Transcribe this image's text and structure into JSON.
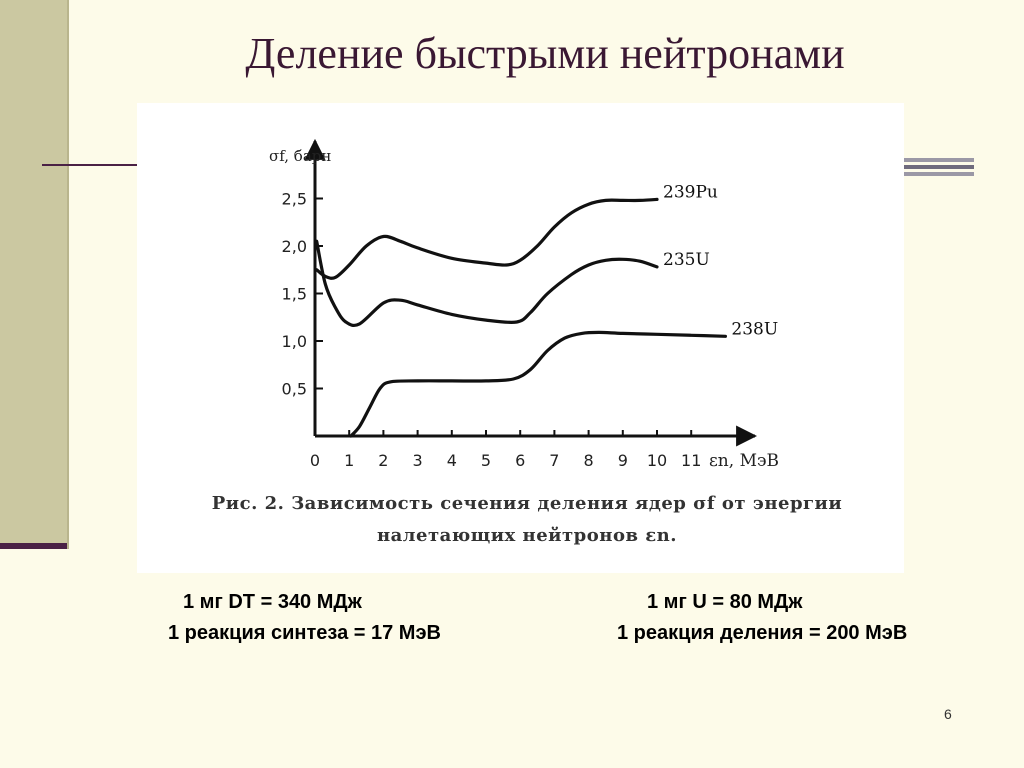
{
  "slide": {
    "title": "Деление быстрыми нейтронами",
    "page_number": "6",
    "stats": {
      "dt_energy": "1 мг DT = 340 МДж",
      "u_energy": "1 мг U = 80 МДж",
      "fusion_reaction": "1 реакция синтеза = 17 МэВ",
      "fission_reaction": "1 реакция деления = 200 МэВ"
    }
  },
  "chart_data": {
    "type": "line",
    "ylabel": "σf, барн",
    "xlabel": "εn, МэВ",
    "caption_prefix": "Рис. 2.",
    "caption_text": "Зависимость сечения деления ядер σf от энергии налетающих нейтронов εn.",
    "xlim": [
      0,
      12.5
    ],
    "ylim": [
      0,
      2.9
    ],
    "x_ticks": [
      "0",
      "1",
      "2",
      "3",
      "4",
      "5",
      "6",
      "7",
      "8",
      "9",
      "10",
      "11"
    ],
    "y_ticks": [
      "0,5",
      "1,0",
      "1,5",
      "2,0",
      "2,5"
    ],
    "grid": false,
    "series": [
      {
        "name": "239Pu",
        "x": [
          0.05,
          0.3,
          0.6,
          1.0,
          1.5,
          2.0,
          2.5,
          3.0,
          4.0,
          5.0,
          5.6,
          6.0,
          6.5,
          7.0,
          7.5,
          8.0,
          8.5,
          9.0,
          9.5,
          10.0
        ],
        "y": [
          1.75,
          1.68,
          1.67,
          1.8,
          2.0,
          2.1,
          2.05,
          1.98,
          1.87,
          1.82,
          1.8,
          1.85,
          2.0,
          2.2,
          2.35,
          2.44,
          2.48,
          2.48,
          2.48,
          2.49
        ]
      },
      {
        "name": "235U",
        "x": [
          0.05,
          0.3,
          0.6,
          0.9,
          1.3,
          2.0,
          2.5,
          3.0,
          4.0,
          5.0,
          5.9,
          6.3,
          6.8,
          7.5,
          8.0,
          8.5,
          9.0,
          9.5,
          10.0
        ],
        "y": [
          2.05,
          1.6,
          1.35,
          1.2,
          1.18,
          1.4,
          1.43,
          1.38,
          1.28,
          1.22,
          1.2,
          1.3,
          1.5,
          1.7,
          1.8,
          1.85,
          1.86,
          1.84,
          1.78
        ]
      },
      {
        "name": "238U",
        "x": [
          1.05,
          1.3,
          1.6,
          1.9,
          2.2,
          3.0,
          4.0,
          5.0,
          5.8,
          6.3,
          6.8,
          7.3,
          7.8,
          8.3,
          9.0,
          10.0,
          11.0,
          12.0
        ],
        "y": [
          0.0,
          0.1,
          0.3,
          0.5,
          0.57,
          0.58,
          0.58,
          0.58,
          0.6,
          0.7,
          0.9,
          1.03,
          1.08,
          1.09,
          1.08,
          1.07,
          1.06,
          1.05
        ]
      }
    ]
  }
}
